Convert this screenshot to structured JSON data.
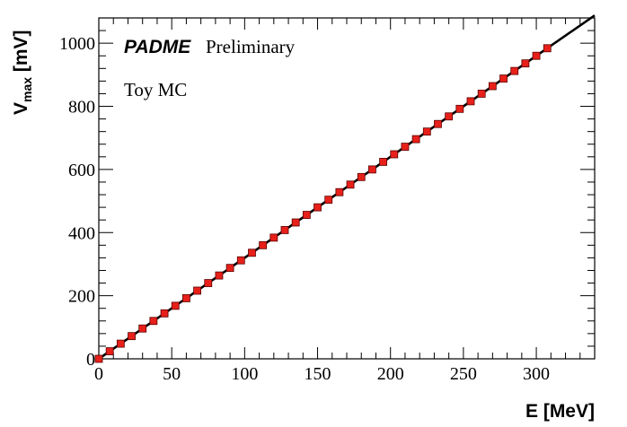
{
  "chart_data": {
    "type": "scatter",
    "title": "",
    "xlabel": "E [MeV]",
    "ylabel": {
      "main": "V",
      "subscript": "max",
      "unit": " [mV]"
    },
    "xlim": [
      0,
      340
    ],
    "ylim": [
      0,
      1080
    ],
    "xticks": [
      0,
      50,
      100,
      150,
      200,
      250,
      300
    ],
    "yticks": [
      0,
      200,
      400,
      600,
      800,
      1000
    ],
    "grid": false,
    "annotations": {
      "experiment": "PADME",
      "status": "Preliminary",
      "sample": "Toy MC"
    },
    "fit": {
      "type": "linear",
      "slope": 3.2,
      "intercept": 0,
      "x_range": [
        0,
        340
      ]
    },
    "colors": {
      "markers": "#e8201a",
      "marker_edge": "#5a0000",
      "fit_line": "#000000"
    },
    "series": [
      {
        "marker": "square",
        "points": [
          {
            "x": 0,
            "y": 0
          },
          {
            "x": 7.5,
            "y": 24
          },
          {
            "x": 15,
            "y": 48
          },
          {
            "x": 22.5,
            "y": 72
          },
          {
            "x": 30,
            "y": 96
          },
          {
            "x": 37.5,
            "y": 120
          },
          {
            "x": 45,
            "y": 144
          },
          {
            "x": 52.5,
            "y": 168
          },
          {
            "x": 60,
            "y": 192
          },
          {
            "x": 67.5,
            "y": 216
          },
          {
            "x": 75,
            "y": 240
          },
          {
            "x": 82.5,
            "y": 264
          },
          {
            "x": 90,
            "y": 288
          },
          {
            "x": 97.5,
            "y": 312
          },
          {
            "x": 105,
            "y": 336
          },
          {
            "x": 112.5,
            "y": 360
          },
          {
            "x": 120,
            "y": 384
          },
          {
            "x": 127.5,
            "y": 408
          },
          {
            "x": 135,
            "y": 432
          },
          {
            "x": 142.5,
            "y": 456
          },
          {
            "x": 150,
            "y": 480
          },
          {
            "x": 157.5,
            "y": 504
          },
          {
            "x": 165,
            "y": 528
          },
          {
            "x": 172.5,
            "y": 552
          },
          {
            "x": 180,
            "y": 576
          },
          {
            "x": 187.5,
            "y": 600
          },
          {
            "x": 195,
            "y": 624
          },
          {
            "x": 202.5,
            "y": 648
          },
          {
            "x": 210,
            "y": 672
          },
          {
            "x": 217.5,
            "y": 696
          },
          {
            "x": 225,
            "y": 720
          },
          {
            "x": 232.5,
            "y": 744
          },
          {
            "x": 240,
            "y": 768
          },
          {
            "x": 247.5,
            "y": 792
          },
          {
            "x": 255,
            "y": 816
          },
          {
            "x": 262.5,
            "y": 840
          },
          {
            "x": 270,
            "y": 864
          },
          {
            "x": 277.5,
            "y": 888
          },
          {
            "x": 285,
            "y": 912
          },
          {
            "x": 292.5,
            "y": 936
          },
          {
            "x": 300,
            "y": 960
          },
          {
            "x": 307.5,
            "y": 984
          }
        ]
      }
    ]
  }
}
